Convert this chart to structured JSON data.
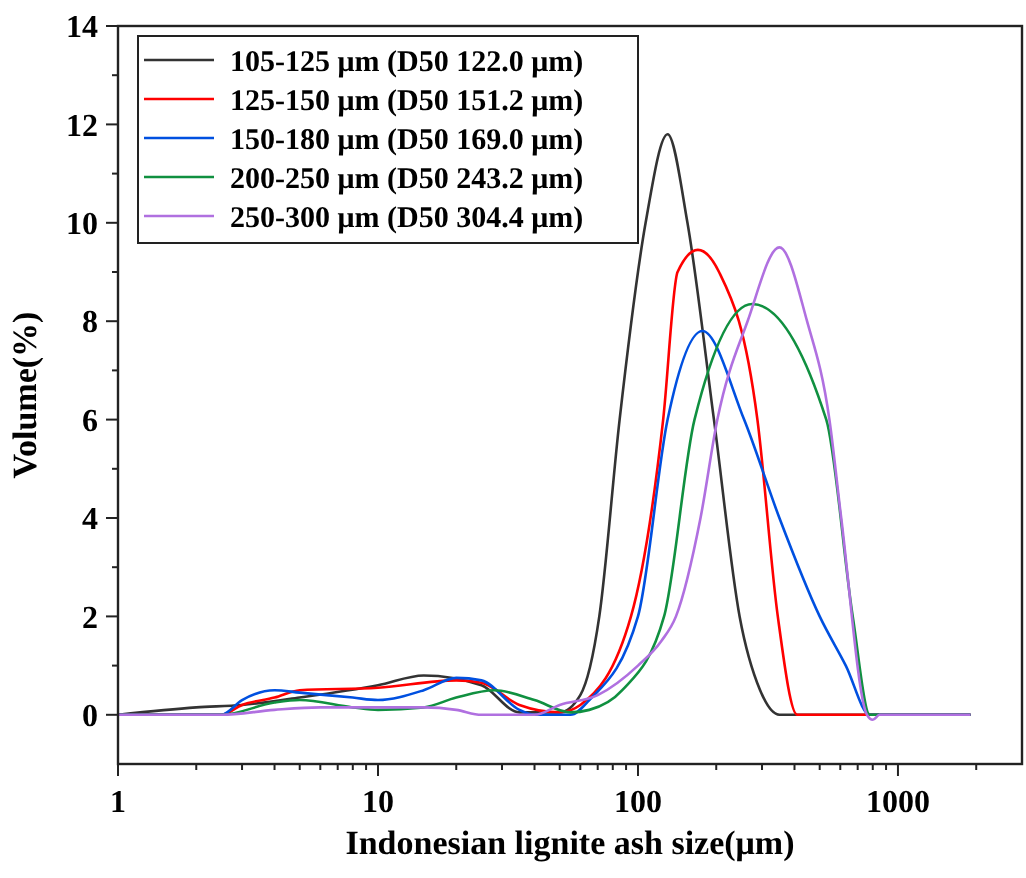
{
  "chart_data": {
    "type": "line",
    "xlabel": "Indonesian lignite ash size(μm)",
    "ylabel": "Volume(%)",
    "log": "x",
    "xlim": [
      1,
      3000
    ],
    "xticks": [
      1,
      10,
      100,
      1000
    ],
    "ylim": [
      -1,
      14
    ],
    "yticks": [
      0,
      2,
      4,
      6,
      8,
      10,
      12,
      14
    ],
    "legend": "top left",
    "grid": false,
    "marker": "none",
    "line_style": "solid",
    "series": [
      {
        "name": "105-125 μm (D50 122.0 μm)",
        "color": "#333333",
        "x": [
          1,
          2,
          3,
          5,
          10,
          15,
          25,
          35,
          50,
          60,
          71,
          85,
          107,
          130,
          155,
          196,
          246,
          295,
          350,
          1900
        ],
        "values": [
          0,
          0.15,
          0.2,
          0.35,
          0.6,
          0.8,
          0.6,
          0.05,
          0.05,
          0.4,
          2,
          6,
          10,
          11.8,
          10,
          6,
          2,
          0.5,
          0,
          0
        ]
      },
      {
        "name": "125-150 μm (D50 151.2 μm)",
        "color": "#ff0000",
        "x": [
          1,
          2.5,
          3,
          4,
          5,
          10,
          20,
          25,
          35,
          50,
          60,
          94,
          125,
          142,
          170,
          205,
          288,
          345,
          410,
          1900
        ],
        "values": [
          0,
          0,
          0.2,
          0.35,
          0.5,
          0.55,
          0.7,
          0.65,
          0.2,
          0.05,
          0.2,
          2,
          6,
          9,
          9.45,
          9,
          6,
          2,
          0,
          0
        ]
      },
      {
        "name": "150-180 μm (D50 169.0 μm)",
        "color": "#0050e0",
        "x": [
          1,
          2.5,
          3,
          4,
          5,
          8,
          10,
          15,
          20,
          25,
          35,
          40,
          55,
          65,
          100,
          130,
          177,
          256,
          350,
          500,
          630,
          780,
          1900
        ],
        "values": [
          0,
          0,
          0.3,
          0.5,
          0.45,
          0.35,
          0.3,
          0.5,
          0.75,
          0.7,
          0.1,
          0,
          0,
          0.3,
          2,
          6,
          7.8,
          6,
          4,
          2,
          1,
          0,
          0
        ]
      },
      {
        "name": "200-250 μm (D50 243.2 μm)",
        "color": "#109040",
        "x": [
          1,
          2.5,
          4,
          5,
          8,
          10,
          15,
          20,
          28,
          40,
          55,
          65,
          87,
          126,
          165,
          275,
          530,
          670,
          780,
          1900
        ],
        "values": [
          0,
          0,
          0.25,
          0.3,
          0.15,
          0.1,
          0.15,
          0.35,
          0.5,
          0.3,
          0.05,
          0.1,
          0.5,
          2,
          6,
          8.35,
          6,
          2,
          0,
          0
        ]
      },
      {
        "name": "250-300 μm (D50 304.4 μm)",
        "color": "#b070e0",
        "x": [
          1,
          2.5,
          4,
          6,
          10,
          15,
          20,
          25,
          40,
          50,
          70,
          100,
          123,
          140,
          174,
          202,
          264,
          350,
          447,
          545,
          605,
          760,
          800,
          850,
          1900
        ],
        "values": [
          0,
          0,
          0.1,
          0.15,
          0.15,
          0.15,
          0.1,
          0,
          0,
          0.2,
          0.4,
          1,
          1.5,
          2,
          4,
          6,
          8,
          9.5,
          8,
          6,
          4,
          0,
          -0.1,
          0,
          0
        ]
      }
    ]
  }
}
